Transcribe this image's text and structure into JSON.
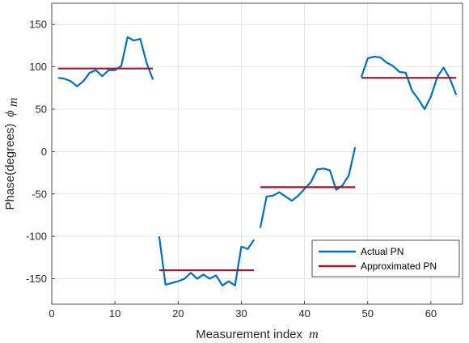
{
  "chart_data": {
    "type": "line",
    "title": "",
    "xlabel": "Measurement index",
    "xlabel_math": "m",
    "ylabel": "Phase(degrees)",
    "ylabel_math": "ϕ",
    "ylabel_math_sub": "m",
    "xlim": [
      0,
      65
    ],
    "ylim": [
      -180,
      175
    ],
    "xticks": [
      0,
      10,
      20,
      30,
      40,
      50,
      60
    ],
    "xtick_labels": [
      "0",
      "10",
      "20",
      "30",
      "40",
      "50",
      "60"
    ],
    "yticks": [
      150,
      100,
      50,
      0,
      -50,
      -100,
      -150
    ],
    "ytick_labels": [
      "150",
      "100",
      "50",
      "0",
      "-50",
      "-100",
      "-150"
    ],
    "grid": true,
    "legend_position": "bottom-right",
    "series": [
      {
        "name": "Actual PN",
        "color": "#0072BD",
        "segments": [
          {
            "x": [
              1,
              2,
              3,
              4,
              5,
              6,
              7,
              8,
              9,
              10,
              11,
              12,
              13,
              14,
              15,
              16
            ],
            "y": [
              87,
              86,
              83,
              77,
              83,
              93,
              96,
              89,
              96,
              96,
              101,
              135,
              131,
              133,
              105,
              85
            ]
          },
          {
            "x": [
              17,
              18,
              19,
              20,
              21,
              22,
              23,
              24,
              25,
              26,
              27,
              28,
              29,
              30,
              31,
              32
            ],
            "y": [
              -100,
              -157,
              -155,
              -153,
              -150,
              -143,
              -150,
              -145,
              -150,
              -146,
              -158,
              -153,
              -158,
              -112,
              -115,
              -104
            ]
          },
          {
            "x": [
              33,
              34,
              35,
              36,
              37,
              38,
              39,
              40,
              41,
              42,
              43,
              44,
              45,
              46,
              47,
              48
            ],
            "y": [
              -90,
              -53,
              -52,
              -48,
              -53,
              -58,
              -52,
              -44,
              -36,
              -21,
              -20,
              -22,
              -45,
              -40,
              -28,
              5
            ]
          },
          {
            "x": [
              49,
              50,
              51,
              52,
              53,
              54,
              55,
              56,
              57,
              58,
              59,
              60,
              61,
              62,
              63,
              64
            ],
            "y": [
              88,
              110,
              112,
              111,
              105,
              101,
              94,
              93,
              72,
              62,
              50,
              65,
              88,
              99,
              86,
              67
            ]
          }
        ]
      },
      {
        "name": "Approximated PN",
        "color": "#A2142F",
        "segments": [
          {
            "x": [
              1,
              16
            ],
            "y": [
              98,
              98
            ]
          },
          {
            "x": [
              17,
              32
            ],
            "y": [
              -140,
              -140
            ]
          },
          {
            "x": [
              33,
              48
            ],
            "y": [
              -42,
              -42
            ]
          },
          {
            "x": [
              49,
              64
            ],
            "y": [
              87,
              87
            ]
          }
        ]
      }
    ]
  }
}
